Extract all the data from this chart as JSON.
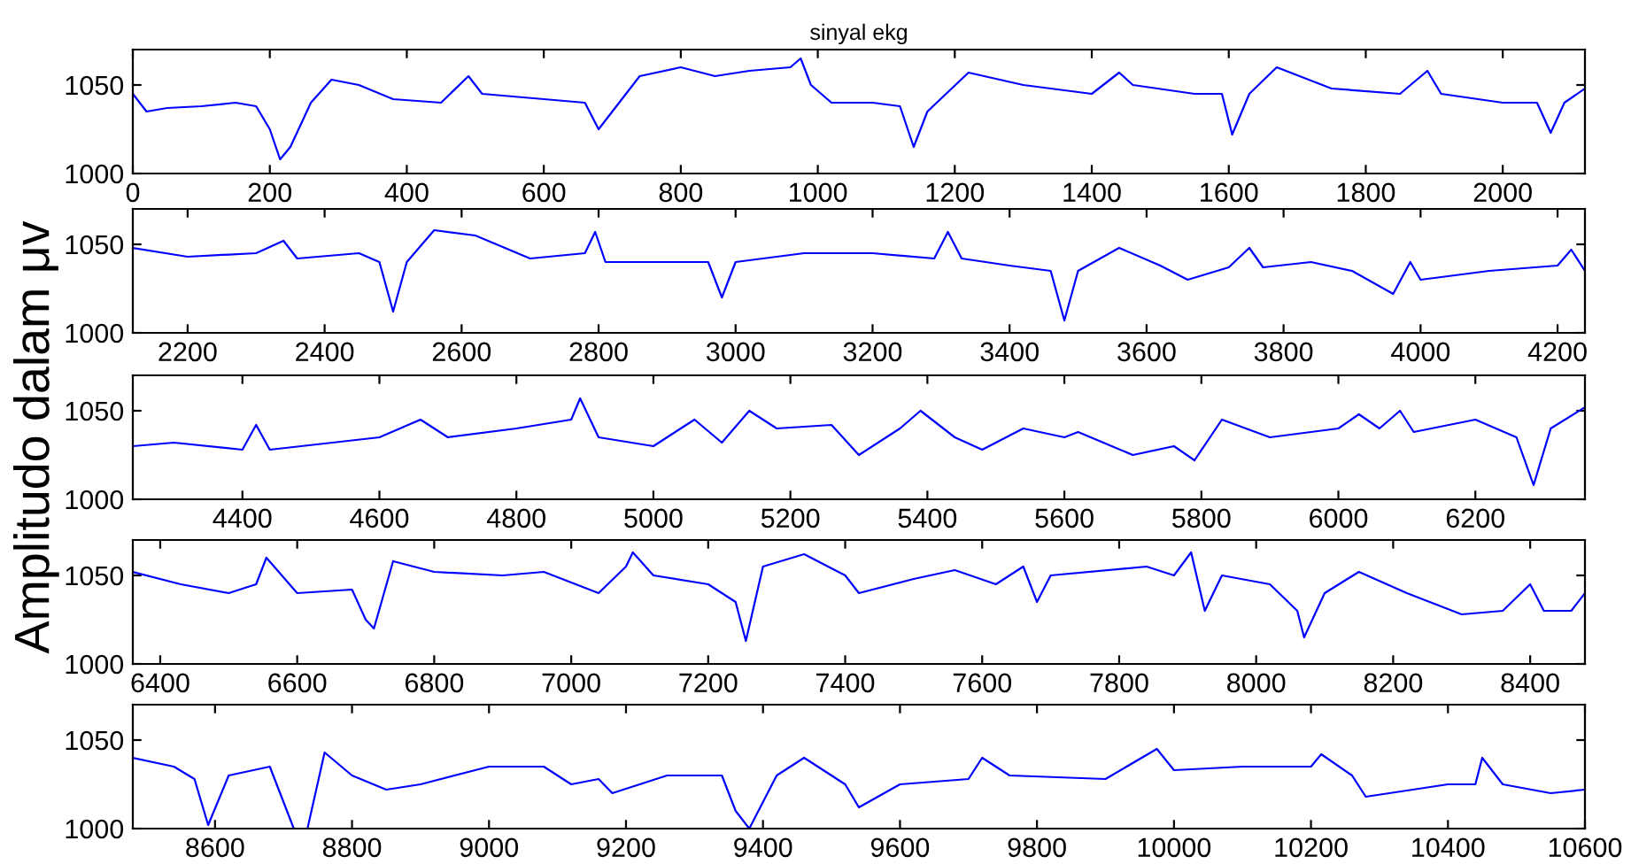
{
  "chart_data": [
    {
      "type": "line",
      "title": "sinyal ekg",
      "xlim": [
        0,
        2120
      ],
      "ylim": [
        1000,
        1070
      ],
      "xticks": [
        0,
        200,
        400,
        600,
        800,
        1000,
        1200,
        1400,
        1600,
        1800,
        2000
      ],
      "yticks": [
        1000,
        1050
      ],
      "grid": false,
      "legend": false,
      "marker": "none",
      "line_style": "solid",
      "series": [
        {
          "color": "#0000ff",
          "x": [
            0,
            20,
            50,
            100,
            150,
            180,
            200,
            215,
            230,
            260,
            290,
            330,
            380,
            450,
            490,
            510,
            600,
            660,
            680,
            700,
            740,
            800,
            850,
            900,
            960,
            975,
            990,
            1020,
            1080,
            1120,
            1140,
            1160,
            1220,
            1300,
            1400,
            1440,
            1460,
            1550,
            1590,
            1605,
            1630,
            1670,
            1750,
            1850,
            1890,
            1910,
            2000,
            2050,
            2070,
            2090,
            2120
          ],
          "values": [
            1045,
            1035,
            1037,
            1038,
            1040,
            1038,
            1025,
            1008,
            1015,
            1040,
            1053,
            1050,
            1042,
            1040,
            1055,
            1045,
            1042,
            1040,
            1025,
            1035,
            1055,
            1060,
            1055,
            1058,
            1060,
            1065,
            1050,
            1040,
            1040,
            1038,
            1015,
            1035,
            1057,
            1050,
            1045,
            1057,
            1050,
            1045,
            1045,
            1022,
            1045,
            1060,
            1048,
            1045,
            1058,
            1045,
            1040,
            1040,
            1023,
            1040,
            1048
          ]
        }
      ]
    },
    {
      "type": "line",
      "xlim": [
        2120,
        4240
      ],
      "ylim": [
        1000,
        1070
      ],
      "xticks": [
        2200,
        2400,
        2600,
        2800,
        3000,
        3200,
        3400,
        3600,
        3800,
        4000,
        4200
      ],
      "yticks": [
        1000,
        1050
      ],
      "grid": false,
      "legend": false,
      "marker": "none",
      "line_style": "solid",
      "series": [
        {
          "color": "#0000ff",
          "x": [
            2120,
            2200,
            2300,
            2340,
            2360,
            2450,
            2480,
            2500,
            2520,
            2560,
            2620,
            2700,
            2780,
            2795,
            2810,
            2900,
            2960,
            2980,
            3000,
            3100,
            3200,
            3290,
            3310,
            3330,
            3400,
            3460,
            3480,
            3500,
            3560,
            3620,
            3660,
            3720,
            3750,
            3770,
            3840,
            3900,
            3960,
            3985,
            4000,
            4100,
            4200,
            4220,
            4240
          ],
          "values": [
            1048,
            1043,
            1045,
            1052,
            1042,
            1045,
            1040,
            1012,
            1040,
            1058,
            1055,
            1042,
            1045,
            1057,
            1040,
            1040,
            1040,
            1020,
            1040,
            1045,
            1045,
            1042,
            1057,
            1042,
            1038,
            1035,
            1007,
            1035,
            1048,
            1038,
            1030,
            1037,
            1048,
            1037,
            1040,
            1035,
            1022,
            1040,
            1030,
            1035,
            1038,
            1047,
            1035
          ]
        }
      ]
    },
    {
      "type": "line",
      "ylabel": "Amplitudo dalam μv",
      "xlim": [
        4240,
        6360
      ],
      "ylim": [
        1000,
        1070
      ],
      "xticks": [
        4400,
        4600,
        4800,
        5000,
        5200,
        5400,
        5600,
        5800,
        6000,
        6200
      ],
      "yticks": [
        1000,
        1050
      ],
      "grid": false,
      "legend": false,
      "marker": "none",
      "line_style": "solid",
      "series": [
        {
          "color": "#0000ff",
          "x": [
            4240,
            4300,
            4400,
            4420,
            4440,
            4600,
            4660,
            4700,
            4800,
            4880,
            4893,
            4920,
            5000,
            5060,
            5100,
            5140,
            5180,
            5260,
            5300,
            5360,
            5390,
            5440,
            5480,
            5540,
            5600,
            5620,
            5700,
            5760,
            5790,
            5830,
            5900,
            6000,
            6030,
            6060,
            6090,
            6110,
            6200,
            6260,
            6285,
            6310,
            6360
          ],
          "values": [
            1030,
            1032,
            1028,
            1042,
            1028,
            1035,
            1045,
            1035,
            1040,
            1045,
            1057,
            1035,
            1030,
            1045,
            1032,
            1050,
            1040,
            1042,
            1025,
            1040,
            1050,
            1035,
            1028,
            1040,
            1035,
            1038,
            1025,
            1030,
            1022,
            1045,
            1035,
            1040,
            1048,
            1040,
            1050,
            1038,
            1045,
            1035,
            1008,
            1040,
            1052
          ]
        }
      ]
    },
    {
      "type": "line",
      "xlim": [
        6360,
        8480
      ],
      "ylim": [
        1000,
        1070
      ],
      "xticks": [
        6400,
        6600,
        6800,
        7000,
        7200,
        7400,
        7600,
        7800,
        8000,
        8200,
        8400
      ],
      "yticks": [
        1000,
        1050
      ],
      "grid": false,
      "legend": false,
      "marker": "none",
      "line_style": "solid",
      "series": [
        {
          "color": "#0000ff",
          "x": [
            6360,
            6430,
            6500,
            6540,
            6555,
            6600,
            6680,
            6700,
            6712,
            6740,
            6800,
            6900,
            6960,
            7040,
            7080,
            7090,
            7120,
            7200,
            7240,
            7255,
            7280,
            7340,
            7400,
            7420,
            7500,
            7560,
            7620,
            7660,
            7680,
            7700,
            7840,
            7880,
            7905,
            7925,
            7950,
            8020,
            8060,
            8070,
            8100,
            8150,
            8220,
            8300,
            8360,
            8400,
            8420,
            8460,
            8480
          ],
          "values": [
            1052,
            1045,
            1040,
            1045,
            1060,
            1040,
            1042,
            1025,
            1020,
            1058,
            1052,
            1050,
            1052,
            1040,
            1055,
            1063,
            1050,
            1045,
            1035,
            1013,
            1055,
            1062,
            1050,
            1040,
            1048,
            1053,
            1045,
            1055,
            1035,
            1050,
            1055,
            1050,
            1063,
            1030,
            1050,
            1045,
            1030,
            1015,
            1040,
            1052,
            1040,
            1028,
            1030,
            1045,
            1030,
            1030,
            1040
          ]
        }
      ]
    },
    {
      "type": "line",
      "xlim": [
        8480,
        10600
      ],
      "ylim": [
        1000,
        1070
      ],
      "xticks": [
        8600,
        8800,
        9000,
        9200,
        9400,
        9600,
        9800,
        10000,
        10200,
        10400,
        10600
      ],
      "yticks": [
        1000,
        1050
      ],
      "grid": false,
      "legend": false,
      "marker": "none",
      "line_style": "solid",
      "series": [
        {
          "color": "#0000ff",
          "x": [
            8480,
            8540,
            8570,
            8590,
            8620,
            8680,
            8715,
            8735,
            8760,
            8800,
            8850,
            8900,
            9000,
            9080,
            9120,
            9160,
            9180,
            9260,
            9340,
            9360,
            9380,
            9420,
            9460,
            9520,
            9540,
            9600,
            9700,
            9720,
            9760,
            9900,
            9975,
            10000,
            10100,
            10200,
            10215,
            10260,
            10280,
            10400,
            10440,
            10450,
            10480,
            10550,
            10600
          ],
          "values": [
            1040,
            1035,
            1028,
            1002,
            1030,
            1035,
            1000,
            1000,
            1043,
            1030,
            1022,
            1025,
            1035,
            1035,
            1025,
            1028,
            1020,
            1030,
            1030,
            1010,
            1000,
            1030,
            1040,
            1025,
            1012,
            1025,
            1028,
            1040,
            1030,
            1028,
            1045,
            1033,
            1035,
            1035,
            1042,
            1030,
            1018,
            1025,
            1025,
            1040,
            1025,
            1020,
            1022
          ]
        }
      ]
    }
  ]
}
